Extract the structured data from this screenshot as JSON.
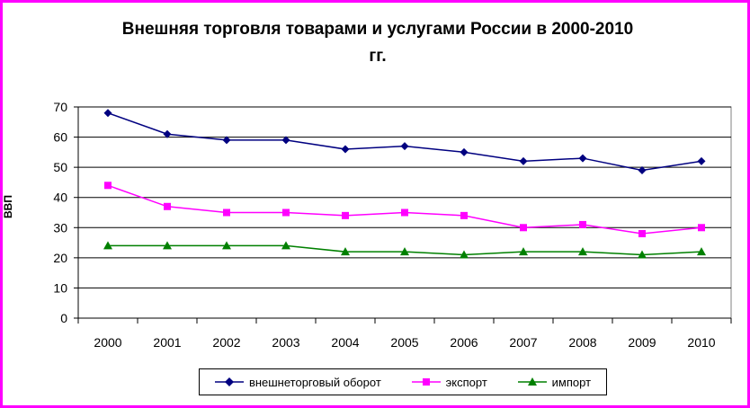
{
  "chart_data": {
    "type": "line",
    "title_line1": "Внешняя торговля товарами и услугами России в 2000-2010",
    "title_line2": "гг.",
    "ylabel": "ВВП",
    "ylim": [
      0,
      70
    ],
    "yticks": [
      "0",
      "10",
      "20",
      "30",
      "40",
      "50",
      "60",
      "70"
    ],
    "categories": [
      "2000",
      "2001",
      "2002",
      "2003",
      "2004",
      "2005",
      "2006",
      "2007",
      "2008",
      "2009",
      "2010"
    ],
    "grid": true,
    "legend_position": "bottom",
    "series": [
      {
        "name": "внешнеторговый оборот",
        "color": "#000080",
        "marker": "diamond",
        "values": [
          68,
          61,
          59,
          59,
          56,
          57,
          55,
          52,
          53,
          49,
          52
        ]
      },
      {
        "name": "экспорт",
        "color": "#ff00ff",
        "marker": "square",
        "values": [
          44,
          37,
          35,
          35,
          34,
          35,
          34,
          30,
          31,
          28,
          30
        ]
      },
      {
        "name": "импорт",
        "color": "#008000",
        "marker": "triangle",
        "values": [
          24,
          24,
          24,
          24,
          22,
          22,
          21,
          22,
          22,
          21,
          22
        ]
      }
    ]
  }
}
